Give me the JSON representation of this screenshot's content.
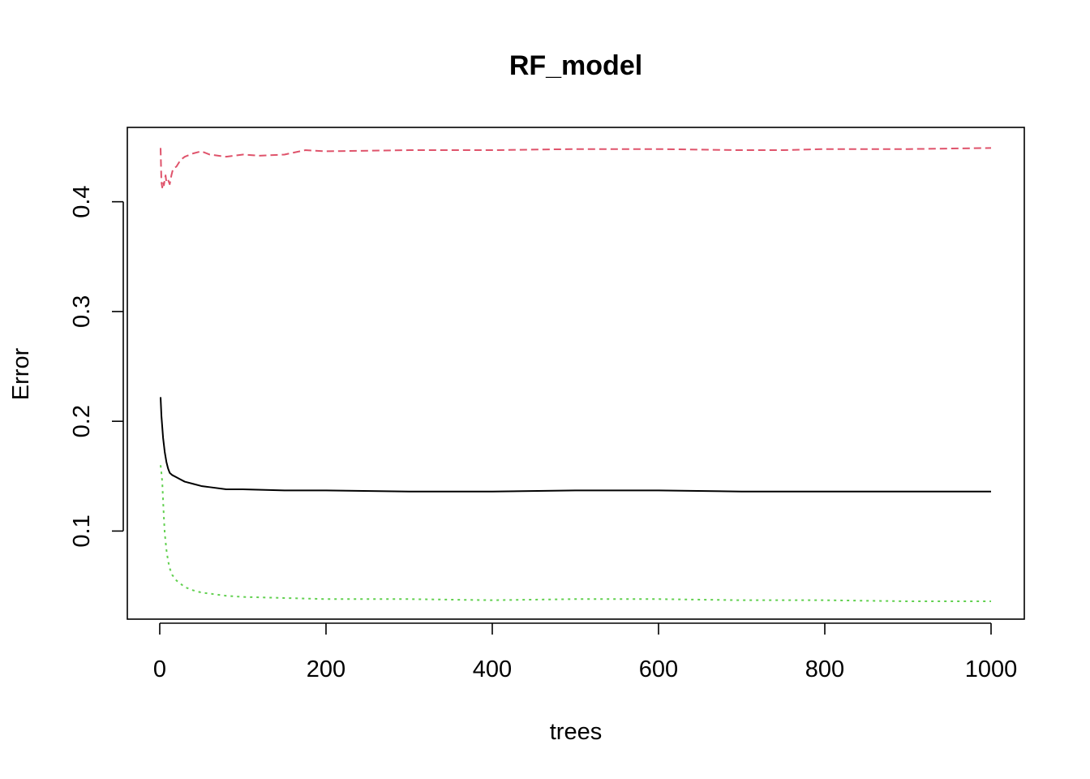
{
  "chart_data": {
    "type": "line",
    "title": "RF_model",
    "xlabel": "trees",
    "ylabel": "Error",
    "xlim": [
      1,
      1000
    ],
    "ylim": [
      0.036,
      0.45
    ],
    "xticks": [
      0,
      200,
      400,
      600,
      800,
      1000
    ],
    "yticks": [
      0.1,
      0.2,
      0.3,
      0.4
    ],
    "xtick_labels": [
      "0",
      "200",
      "400",
      "600",
      "800",
      "1000"
    ],
    "ytick_labels": [
      "0.1",
      "0.2",
      "0.3",
      "0.4"
    ],
    "grid": false,
    "series": [
      {
        "color": "#000000",
        "dash": "solid",
        "x": [
          1,
          2,
          4,
          6,
          8,
          10,
          12,
          15,
          20,
          25,
          30,
          40,
          50,
          60,
          80,
          100,
          150,
          200,
          300,
          400,
          500,
          600,
          700,
          800,
          900,
          1000
        ],
        "y": [
          0.222,
          0.205,
          0.185,
          0.172,
          0.163,
          0.157,
          0.153,
          0.151,
          0.149,
          0.147,
          0.145,
          0.143,
          0.141,
          0.14,
          0.138,
          0.138,
          0.137,
          0.137,
          0.136,
          0.136,
          0.137,
          0.137,
          0.136,
          0.136,
          0.136,
          0.136
        ]
      },
      {
        "color": "#DF536B",
        "dash": "dashed",
        "x": [
          1,
          2,
          3,
          4,
          5,
          6,
          7,
          8,
          10,
          12,
          14,
          16,
          20,
          25,
          30,
          40,
          50,
          60,
          80,
          100,
          120,
          150,
          175,
          200,
          300,
          400,
          500,
          600,
          700,
          750,
          800,
          900,
          1000
        ],
        "y": [
          0.449,
          0.418,
          0.413,
          0.418,
          0.415,
          0.42,
          0.424,
          0.418,
          0.42,
          0.416,
          0.424,
          0.43,
          0.432,
          0.438,
          0.441,
          0.444,
          0.446,
          0.443,
          0.441,
          0.443,
          0.442,
          0.443,
          0.447,
          0.446,
          0.447,
          0.447,
          0.448,
          0.448,
          0.447,
          0.447,
          0.448,
          0.448,
          0.449
        ]
      },
      {
        "color": "#61D04F",
        "dash": "dotted",
        "x": [
          1,
          2,
          3,
          4,
          5,
          6,
          8,
          10,
          12,
          15,
          20,
          25,
          30,
          40,
          50,
          60,
          80,
          100,
          150,
          200,
          300,
          400,
          500,
          600,
          700,
          800,
          900,
          1000
        ],
        "y": [
          0.16,
          0.153,
          0.145,
          0.128,
          0.112,
          0.098,
          0.083,
          0.073,
          0.066,
          0.06,
          0.055,
          0.052,
          0.049,
          0.046,
          0.044,
          0.043,
          0.041,
          0.04,
          0.039,
          0.038,
          0.038,
          0.037,
          0.038,
          0.038,
          0.037,
          0.037,
          0.036,
          0.036
        ]
      }
    ]
  }
}
